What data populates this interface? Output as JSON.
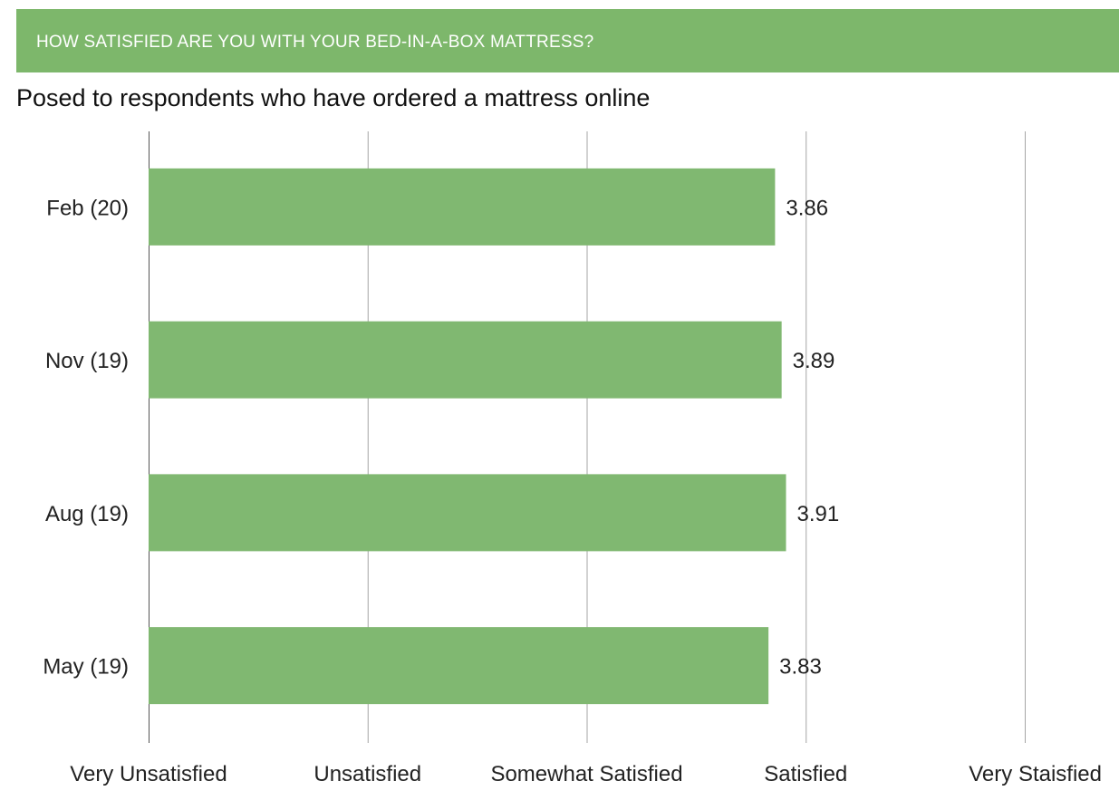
{
  "header": {
    "banner_text": "HOW SATISFIED ARE YOU WITH YOUR BED-IN-A-BOX MATTRESS?",
    "subtitle": "Posed to respondents who have ordered a mattress online"
  },
  "colors": {
    "banner": "#7db76b",
    "bar": "#80b871",
    "gridline": "#a6a6a6",
    "text": "#222222"
  },
  "chart_data": {
    "type": "bar",
    "orientation": "horizontal",
    "title": "",
    "xlabel": "",
    "ylabel": "",
    "categories": [
      "Feb (20)",
      "Nov (19)",
      "Aug (19)",
      "May (19)"
    ],
    "values": [
      3.86,
      3.89,
      3.91,
      3.83
    ],
    "data_labels": [
      "3.86",
      "3.89",
      "3.91",
      "3.83"
    ],
    "xlim": [
      1,
      5
    ],
    "x_ticks": [
      1,
      2,
      3,
      4,
      5
    ],
    "x_tick_labels": [
      "Very Unsatisfied",
      "Unsatisfied",
      "Somewhat Satisfied",
      "Satisfied",
      "Very Staisfied"
    ],
    "grid": true,
    "legend": "none"
  }
}
